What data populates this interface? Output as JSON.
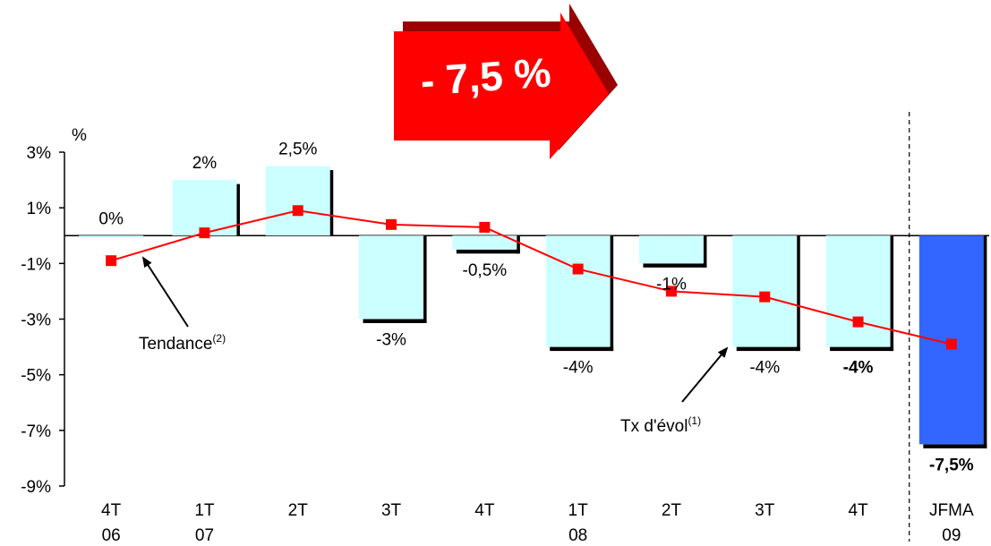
{
  "callout": {
    "text": "- 7,5 %",
    "color": "#ff0000"
  },
  "annotations": [
    {
      "label": "Tendance",
      "sup": "(2)",
      "target_index": 0
    },
    {
      "label": "Tx d'évol",
      "sup": "(1)",
      "target_index": 5
    }
  ],
  "chart_data": {
    "type": "bar",
    "ylabel": "%",
    "ylim": [
      -9,
      3
    ],
    "yticks": [
      3,
      1,
      -1,
      -3,
      -5,
      -7,
      -9
    ],
    "ytick_labels": [
      "3%",
      "1%",
      "-1%",
      "-3%",
      "-5%",
      "-7%",
      "-9%"
    ],
    "categories": [
      {
        "line1": "4T",
        "line2": "06"
      },
      {
        "line1": "1T",
        "line2": "07"
      },
      {
        "line1": "2T",
        "line2": ""
      },
      {
        "line1": "3T",
        "line2": ""
      },
      {
        "line1": "4T",
        "line2": ""
      },
      {
        "line1": "1T",
        "line2": "08"
      },
      {
        "line1": "2T",
        "line2": ""
      },
      {
        "line1": "3T",
        "line2": ""
      },
      {
        "line1": "4T",
        "line2": ""
      },
      {
        "line1": "JFMA",
        "line2": "09"
      }
    ],
    "bars": {
      "values": [
        0,
        2,
        2.5,
        -3,
        -0.5,
        -4,
        -1,
        -4,
        -4,
        -7.5
      ],
      "labels": [
        "0%",
        "2%",
        "2,5%",
        "-3%",
        "-0,5%",
        "-4%",
        "-1%",
        "-4%",
        "-4%",
        "-7,5%"
      ],
      "highlight_labels": [
        false,
        false,
        false,
        false,
        false,
        false,
        false,
        false,
        true,
        true
      ],
      "bar_color": "#ccffff",
      "last_bar_color": "#3366ff",
      "shadow_color": "#000000",
      "highlight_color": "#ff0000"
    },
    "trend": {
      "values": [
        -0.9,
        0.1,
        0.9,
        0.4,
        0.3,
        -1.2,
        -2.0,
        -2.2,
        -3.1,
        -3.9
      ],
      "color": "#ff0000"
    },
    "separator_after_index": 8,
    "grid": false
  }
}
